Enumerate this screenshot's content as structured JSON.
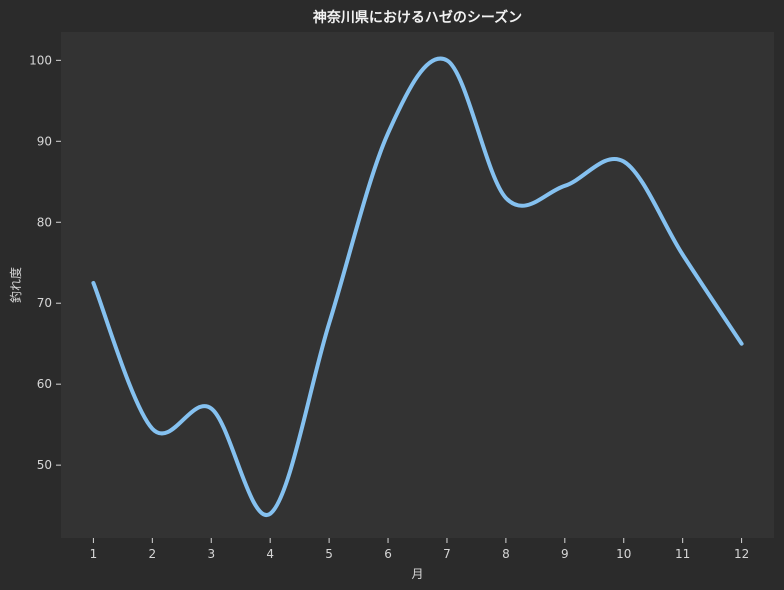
{
  "chart_data": {
    "type": "line",
    "title": "神奈川県におけるハゼのシーズン",
    "xlabel": "月",
    "ylabel": "釣れ度",
    "x": [
      1,
      2,
      3,
      4,
      5,
      6,
      7,
      8,
      9,
      10,
      11,
      12
    ],
    "x_tick_labels": [
      "1",
      "2",
      "3",
      "4",
      "5",
      "6",
      "7",
      "8",
      "9",
      "10",
      "11",
      "12"
    ],
    "y_ticks": [
      50,
      60,
      70,
      80,
      90,
      100
    ],
    "y_tick_labels": [
      "50",
      "60",
      "70",
      "80",
      "90",
      "100"
    ],
    "xlim": [
      0.45,
      12.55
    ],
    "ylim": [
      41,
      103.5
    ],
    "grid": false,
    "series": [
      {
        "values": [
          72.5,
          54.5,
          57,
          44,
          67.5,
          91,
          100,
          83,
          84.5,
          87.5,
          76,
          65
        ],
        "color": "#85c1f0"
      }
    ],
    "colors": {
      "page_background": "#2b2b2b",
      "plot_background": "#333333",
      "text": "#d6d6d6",
      "title_text": "#f2f2f2"
    }
  }
}
